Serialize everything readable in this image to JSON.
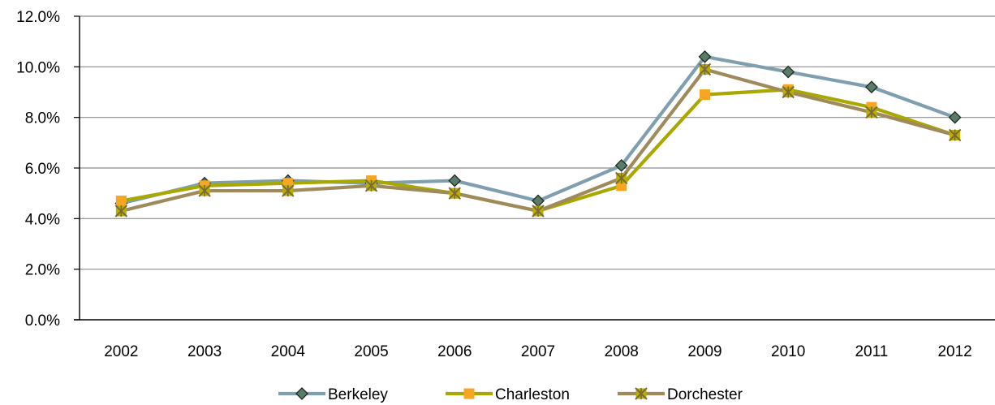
{
  "chart_data": {
    "type": "line",
    "categories": [
      "2002",
      "2003",
      "2004",
      "2005",
      "2006",
      "2007",
      "2008",
      "2009",
      "2010",
      "2011",
      "2012"
    ],
    "y_ticks": [
      "0.0%",
      "2.0%",
      "4.0%",
      "6.0%",
      "8.0%",
      "10.0%",
      "12.0%"
    ],
    "ylim": [
      0,
      12
    ],
    "grid": "horizontal",
    "legend_position": "bottom",
    "series": [
      {
        "name": "Berkeley",
        "color": "#7f9faf",
        "marker_color": "#5a7a6a",
        "marker": "diamond",
        "values": [
          4.6,
          5.4,
          5.5,
          5.4,
          5.5,
          4.7,
          6.1,
          10.4,
          9.8,
          9.2,
          8.0
        ]
      },
      {
        "name": "Charleston",
        "color": "#a8a800",
        "marker_color": "#f5a623",
        "marker": "square",
        "values": [
          4.7,
          5.3,
          5.4,
          5.5,
          5.0,
          4.3,
          5.3,
          8.9,
          9.1,
          8.4,
          7.3
        ]
      },
      {
        "name": "Dorchester",
        "color": "#9e8a5a",
        "marker_color": "#b8b000",
        "marker": "star",
        "values": [
          4.3,
          5.1,
          5.1,
          5.3,
          5.0,
          4.3,
          5.6,
          9.9,
          9.0,
          8.2,
          7.3
        ]
      }
    ]
  }
}
